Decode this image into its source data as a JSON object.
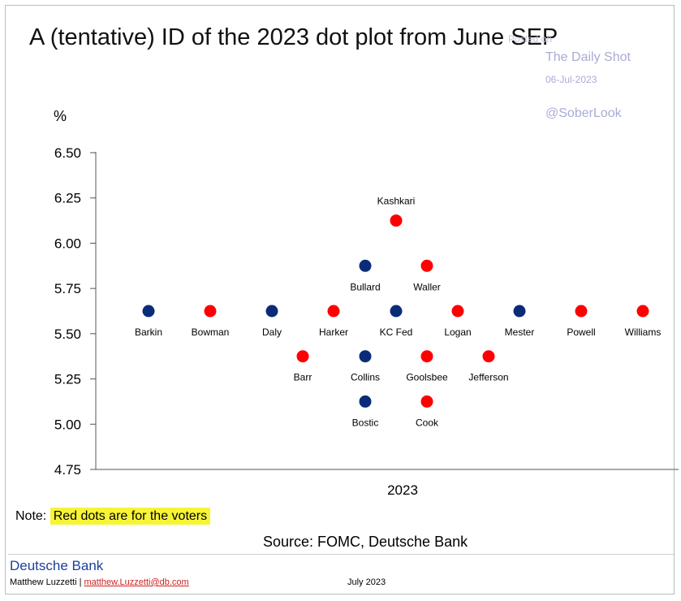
{
  "title": "A (tentative) ID of the 2023 dot plot from June SEP",
  "watermark": {
    "source_tag": "Posted on",
    "name": "The Daily Shot",
    "date": "06-Jul-2023",
    "handle": "@SoberLook"
  },
  "note": {
    "prefix": "Note: ",
    "text": "Red dots are for the voters"
  },
  "source": "Source: FOMC,  Deutsche Bank",
  "footer": {
    "brand": "Deutsche Bank",
    "author": "Matthew Luzzetti | ",
    "email": "matthew.Luzzetti@db.com",
    "date": "July 2023"
  },
  "colors": {
    "voter": "#ff0000",
    "non_voter": "#0a2c78"
  },
  "chart_data": {
    "type": "scatter",
    "ylabel": "%",
    "xlabel": "2023",
    "ylim": [
      4.75,
      6.5
    ],
    "yticks": [
      "6.50",
      "6.25",
      "6.00",
      "5.75",
      "5.50",
      "5.25",
      "5.00",
      "4.75"
    ],
    "grid": false,
    "points": [
      {
        "name": "Barkin",
        "rate": 5.625,
        "voter": false
      },
      {
        "name": "Bowman",
        "rate": 5.625,
        "voter": true
      },
      {
        "name": "Daly",
        "rate": 5.625,
        "voter": false
      },
      {
        "name": "Harker",
        "rate": 5.625,
        "voter": true
      },
      {
        "name": "KC Fed",
        "rate": 5.625,
        "voter": false
      },
      {
        "name": "Logan",
        "rate": 5.625,
        "voter": true
      },
      {
        "name": "Mester",
        "rate": 5.625,
        "voter": false
      },
      {
        "name": "Powell",
        "rate": 5.625,
        "voter": true
      },
      {
        "name": "Williams",
        "rate": 5.625,
        "voter": true
      },
      {
        "name": "Kashkari",
        "rate": 6.125,
        "voter": true
      },
      {
        "name": "Bullard",
        "rate": 5.875,
        "voter": false
      },
      {
        "name": "Waller",
        "rate": 5.875,
        "voter": true
      },
      {
        "name": "Barr",
        "rate": 5.375,
        "voter": true
      },
      {
        "name": "Collins",
        "rate": 5.375,
        "voter": false
      },
      {
        "name": "Goolsbee",
        "rate": 5.375,
        "voter": true
      },
      {
        "name": "Jefferson",
        "rate": 5.375,
        "voter": true
      },
      {
        "name": "Bostic",
        "rate": 5.125,
        "voter": false
      },
      {
        "name": "Cook",
        "rate": 5.125,
        "voter": true
      }
    ]
  }
}
